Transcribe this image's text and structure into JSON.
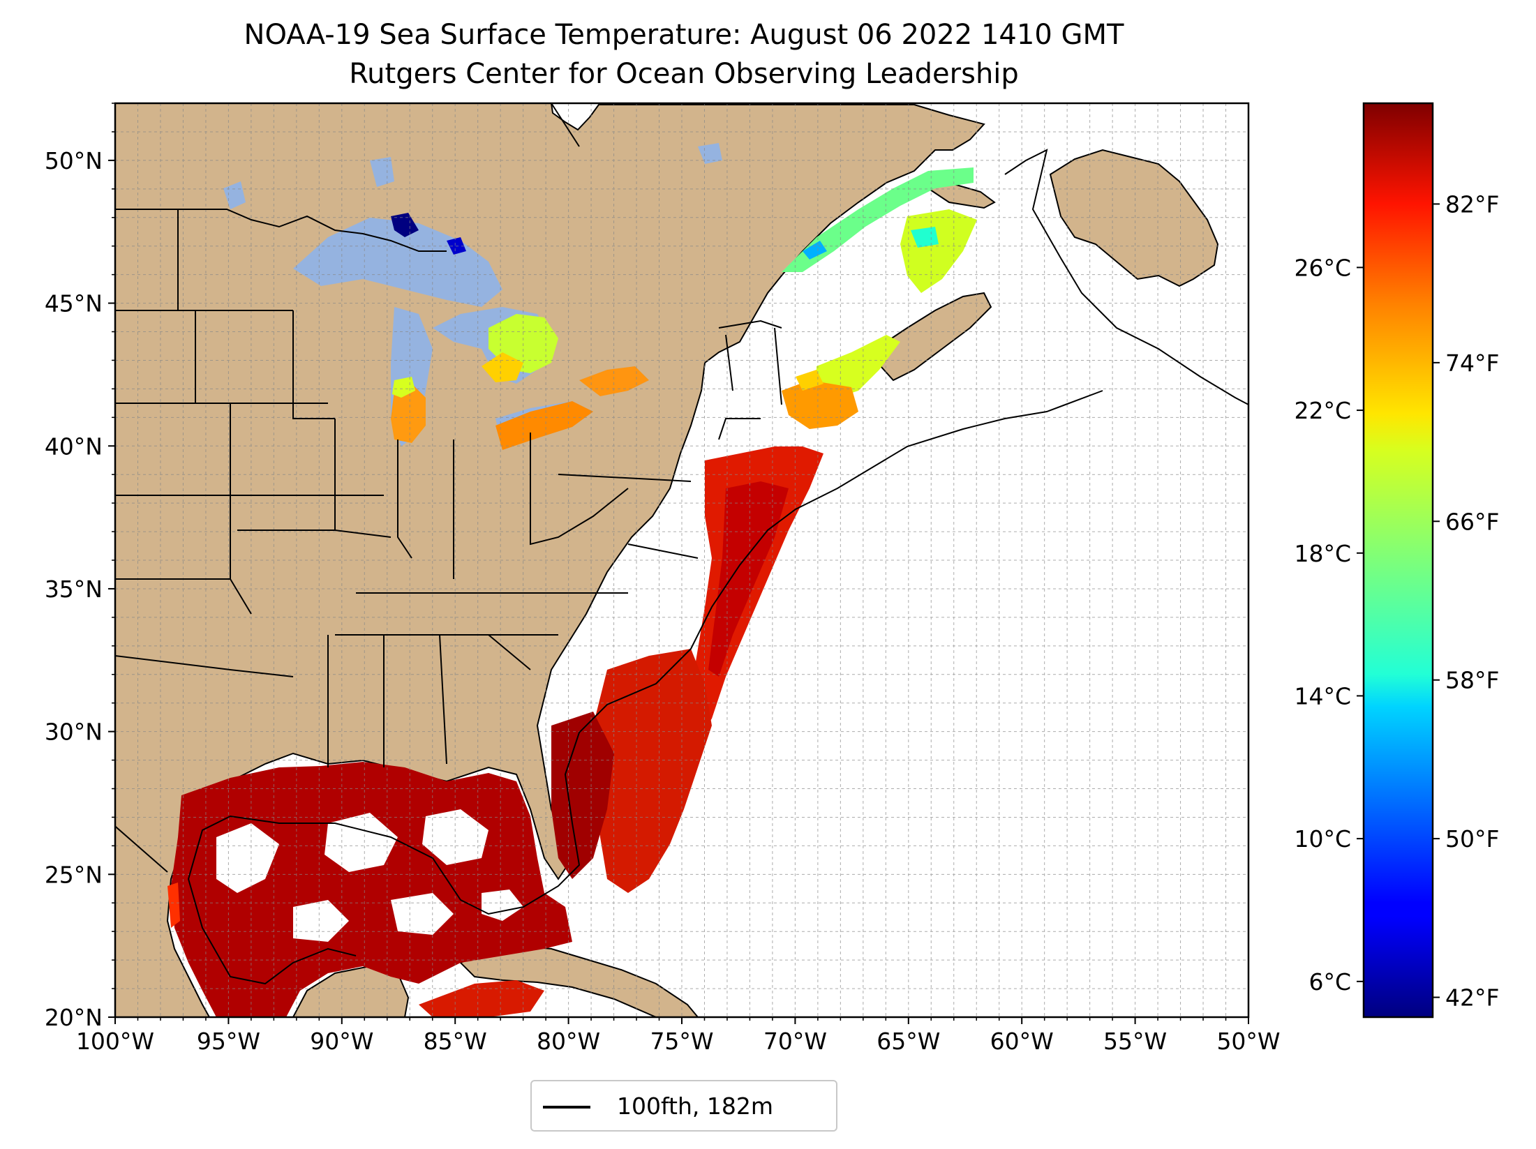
{
  "title": "NOAA-19 Sea Surface Temperature: August 06 2022 1410 GMT",
  "subtitle": "Rutgers Center for Ocean Observing Leadership",
  "map": {
    "lon_range": [
      -100,
      -50
    ],
    "lat_range": [
      20,
      52
    ],
    "x_ticks": [
      "100°W",
      "95°W",
      "90°W",
      "85°W",
      "80°W",
      "75°W",
      "70°W",
      "65°W",
      "60°W",
      "55°W",
      "50°W"
    ],
    "y_ticks": [
      "20°N",
      "25°N",
      "30°N",
      "35°N",
      "40°N",
      "45°N",
      "50°N"
    ],
    "y_tick_values": [
      20,
      25,
      30,
      35,
      40,
      45,
      50
    ],
    "grid": true,
    "land_color": "#d2b48c",
    "lake_color": "#95b3e0"
  },
  "colorbar": {
    "colormap": "jet",
    "celsius_labels": [
      "26°C",
      "22°C",
      "18°C",
      "14°C",
      "10°C",
      "6°C"
    ],
    "fahrenheit_labels": [
      "82°F",
      "74°F",
      "66°F",
      "58°F",
      "50°F",
      "42°F"
    ]
  },
  "legend": {
    "label": "100fth, 182m",
    "placement": "bottom-center"
  }
}
